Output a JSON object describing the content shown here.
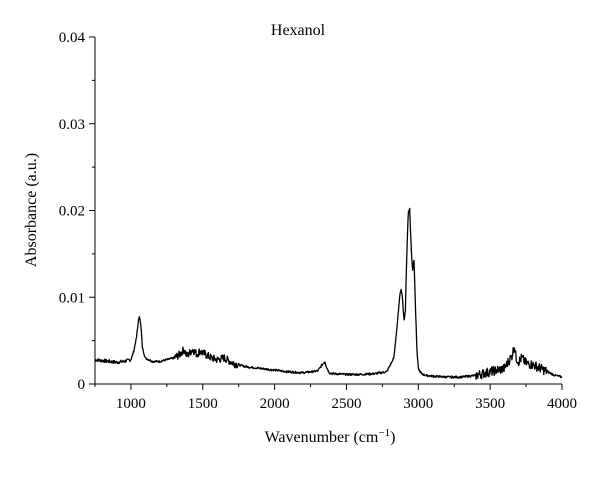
{
  "chart_data": {
    "type": "line",
    "title": "Hexanol",
    "xlabel": "Wavenumber (cm",
    "xlabel_sup": "−1",
    "xlabel_close": ")",
    "ylabel": "Absorbance (a.u.)",
    "xlim": [
      750,
      4000
    ],
    "ylim": [
      0,
      0.04
    ],
    "x_ticks": [
      1000,
      1500,
      2000,
      2500,
      3000,
      3500,
      4000
    ],
    "x_tick_labels": [
      "1000",
      "1500",
      "2000",
      "2500",
      "3000",
      "3500",
      "4000"
    ],
    "y_ticks": [
      0,
      0.01,
      0.02,
      0.03,
      0.04
    ],
    "y_tick_labels": [
      "0",
      "0.01",
      "0.02",
      "0.03",
      "0.04"
    ],
    "grid": false,
    "line_color": "#000000",
    "series": [
      {
        "x": [
          750,
          800,
          850,
          900,
          950,
          1000,
          1020,
          1040,
          1050,
          1060,
          1070,
          1080,
          1100,
          1150,
          1200,
          1250,
          1300,
          1340,
          1370,
          1390,
          1410,
          1430,
          1460,
          1480,
          1500,
          1530,
          1560,
          1600,
          1650,
          1680,
          1700,
          1750,
          1800,
          1900,
          2000,
          2100,
          2200,
          2300,
          2330,
          2350,
          2360,
          2380,
          2400,
          2500,
          2600,
          2700,
          2780,
          2830,
          2860,
          2870,
          2880,
          2890,
          2900,
          2910,
          2920,
          2930,
          2940,
          2950,
          2960,
          2965,
          2970,
          2980,
          2990,
          3000,
          3020,
          3050,
          3100,
          3200,
          3300,
          3400,
          3450,
          3500,
          3550,
          3600,
          3620,
          3650,
          3670,
          3680,
          3700,
          3720,
          3750,
          3800,
          3850,
          3900,
          3950,
          4000
        ],
        "y": [
          0.0028,
          0.0027,
          0.0026,
          0.0025,
          0.0026,
          0.0028,
          0.0038,
          0.0055,
          0.007,
          0.0079,
          0.0066,
          0.0042,
          0.003,
          0.0026,
          0.0026,
          0.0028,
          0.003,
          0.0034,
          0.004,
          0.0032,
          0.0036,
          0.004,
          0.0034,
          0.0038,
          0.0036,
          0.0033,
          0.003,
          0.0028,
          0.003,
          0.0027,
          0.0025,
          0.0022,
          0.002,
          0.0018,
          0.0016,
          0.0014,
          0.0013,
          0.0015,
          0.0022,
          0.0026,
          0.002,
          0.0013,
          0.0012,
          0.0011,
          0.0011,
          0.0012,
          0.0014,
          0.003,
          0.008,
          0.01,
          0.011,
          0.01,
          0.0072,
          0.0085,
          0.015,
          0.0198,
          0.0202,
          0.016,
          0.013,
          0.014,
          0.0143,
          0.009,
          0.004,
          0.0018,
          0.0012,
          0.001,
          0.0009,
          0.0008,
          0.0008,
          0.001,
          0.0012,
          0.0014,
          0.0016,
          0.0018,
          0.0024,
          0.0032,
          0.0044,
          0.003,
          0.0026,
          0.003,
          0.0024,
          0.0022,
          0.0018,
          0.0014,
          0.001,
          0.0008
        ]
      }
    ]
  }
}
